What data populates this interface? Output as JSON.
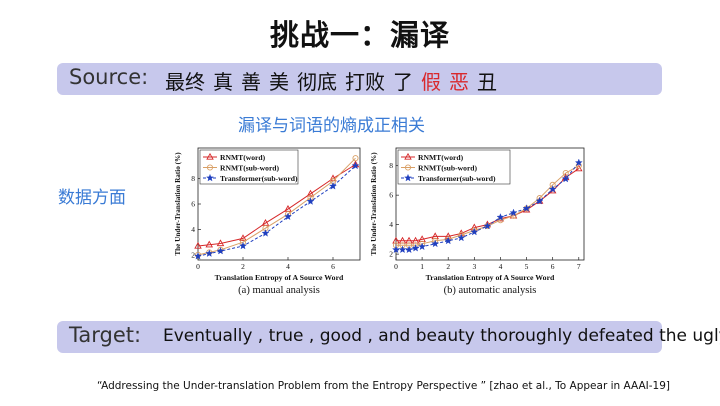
{
  "title": "挑战一：漏译",
  "source": {
    "label": "Source:",
    "words": [
      {
        "text": "最终",
        "highlight": false
      },
      {
        "text": "真",
        "highlight": false
      },
      {
        "text": "善",
        "highlight": false
      },
      {
        "text": "美",
        "highlight": false
      },
      {
        "text": "彻底",
        "highlight": false
      },
      {
        "text": "打败",
        "highlight": false
      },
      {
        "text": "了",
        "highlight": false
      },
      {
        "text": "假",
        "highlight": true
      },
      {
        "text": "恶",
        "highlight": true
      },
      {
        "text": "丑",
        "highlight": false
      }
    ]
  },
  "subtitle": "漏译与词语的熵成正相关",
  "side_label": "数据方面",
  "target": {
    "label": "Target:",
    "text": "Eventually , true , good , and beauty thoroughly defeated the ugly"
  },
  "citation": "“Addressing the Under-translation Problem from the Entropy Perspective ”  [zhao et al., To Appear in AAAI-19]",
  "colors": {
    "band": "#c7c8ec",
    "accent_blue": "#3a7bd5",
    "highlight_red": "#d9282c",
    "rnmt_word": "#d62728",
    "rnmt_sub": "#d9a066",
    "transformer": "#1f3fbf"
  },
  "chart_data": [
    {
      "type": "line",
      "caption": "(a) manual analysis",
      "xlabel": "Translation Entropy of A Source Word",
      "ylabel": "The Under-Translation Ratio (%)",
      "xlim": [
        0,
        7.2
      ],
      "ylim": [
        1.6,
        10.4
      ],
      "xticks": [
        0,
        2,
        4,
        6
      ],
      "yticks": [
        2,
        4,
        6,
        8
      ],
      "legend_position": "top-left",
      "series": [
        {
          "name": "RNMT(word)",
          "marker": "triangle",
          "color": "#d62728",
          "dash": false,
          "x": [
            0,
            0.5,
            1,
            2,
            3,
            4,
            5,
            6,
            7
          ],
          "y": [
            2.7,
            2.8,
            2.9,
            3.3,
            4.5,
            5.6,
            6.8,
            8.0,
            9.1
          ]
        },
        {
          "name": "RNMT(sub-word)",
          "marker": "circle",
          "color": "#d9a066",
          "dash": false,
          "x": [
            0,
            0.5,
            1,
            2,
            3,
            4,
            5,
            6,
            7
          ],
          "y": [
            2.0,
            2.2,
            2.4,
            3.0,
            4.1,
            5.2,
            6.5,
            7.8,
            9.6
          ]
        },
        {
          "name": "Transformer(sub-word)",
          "marker": "star",
          "color": "#1f3fbf",
          "dash": true,
          "x": [
            0,
            0.5,
            1,
            2,
            3,
            4,
            5,
            6,
            7
          ],
          "y": [
            1.9,
            2.1,
            2.3,
            2.7,
            3.7,
            5.0,
            6.2,
            7.4,
            9.0
          ]
        }
      ]
    },
    {
      "type": "line",
      "caption": "(b) automatic analysis",
      "xlabel": "Translation Entropy of A Source Word",
      "ylabel": "The Under-Translation Ratio (%)",
      "xlim": [
        0,
        7.2
      ],
      "ylim": [
        1.6,
        9.2
      ],
      "xticks": [
        0,
        1,
        2,
        3,
        4,
        5,
        6,
        7
      ],
      "yticks": [
        2,
        4,
        6,
        8
      ],
      "legend_position": "top-left",
      "series": [
        {
          "name": "RNMT(word)",
          "marker": "triangle",
          "color": "#d62728",
          "dash": false,
          "x": [
            0,
            0.25,
            0.5,
            0.75,
            1,
            1.5,
            2,
            2.5,
            3,
            3.5,
            4,
            4.5,
            5,
            5.5,
            6,
            6.5,
            7
          ],
          "y": [
            2.9,
            2.9,
            2.9,
            2.9,
            3.0,
            3.2,
            3.2,
            3.4,
            3.8,
            4.0,
            4.4,
            4.6,
            5.0,
            5.6,
            6.3,
            7.2,
            7.8
          ]
        },
        {
          "name": "RNMT(sub-word)",
          "marker": "circle",
          "color": "#d9a066",
          "dash": false,
          "x": [
            0,
            0.25,
            0.5,
            0.75,
            1,
            1.5,
            2,
            2.5,
            3,
            3.5,
            4,
            4.5,
            5,
            5.5,
            6,
            6.5,
            7
          ],
          "y": [
            2.6,
            2.6,
            2.6,
            2.6,
            2.7,
            2.9,
            3.0,
            3.3,
            3.6,
            3.9,
            4.3,
            4.6,
            5.1,
            5.8,
            6.7,
            7.5,
            8.0
          ]
        },
        {
          "name": "Transformer(sub-word)",
          "marker": "star",
          "color": "#1f3fbf",
          "dash": true,
          "x": [
            0,
            0.25,
            0.5,
            0.75,
            1,
            1.5,
            2,
            2.5,
            3,
            3.5,
            4,
            4.5,
            5,
            5.5,
            6,
            6.5,
            7
          ],
          "y": [
            2.3,
            2.3,
            2.3,
            2.4,
            2.5,
            2.7,
            2.9,
            3.1,
            3.5,
            3.9,
            4.5,
            4.8,
            5.1,
            5.6,
            6.4,
            7.1,
            8.2
          ]
        }
      ]
    }
  ]
}
